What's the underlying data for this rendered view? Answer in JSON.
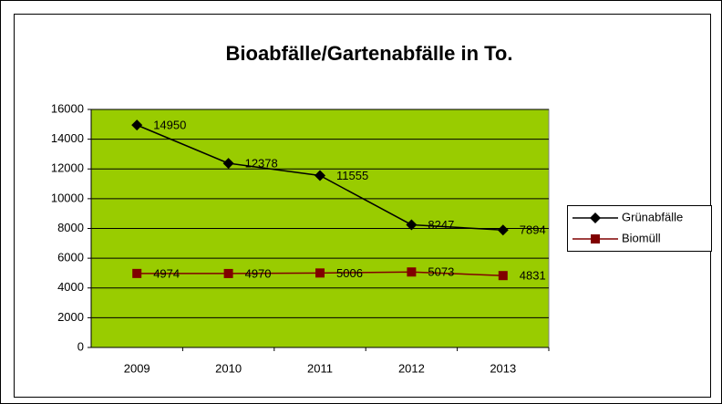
{
  "chart_data": {
    "type": "line",
    "title": "Bioabfälle/Gartenabfälle in To.",
    "categories": [
      "2009",
      "2010",
      "2011",
      "2012",
      "2013"
    ],
    "series": [
      {
        "name": "Grünabfälle",
        "color": "#000000",
        "marker": "diamond",
        "values": [
          14950,
          12378,
          11555,
          8247,
          7894
        ]
      },
      {
        "name": "Biomüll",
        "color": "#800000",
        "marker": "square",
        "values": [
          4974,
          4970,
          5006,
          5073,
          4831
        ]
      }
    ],
    "ylim": [
      0,
      16000
    ],
    "yticks": [
      0,
      2000,
      4000,
      6000,
      8000,
      10000,
      12000,
      14000,
      16000
    ],
    "grid": true,
    "plot_background": "#99CC00",
    "legend": "right",
    "data_labels": true
  }
}
